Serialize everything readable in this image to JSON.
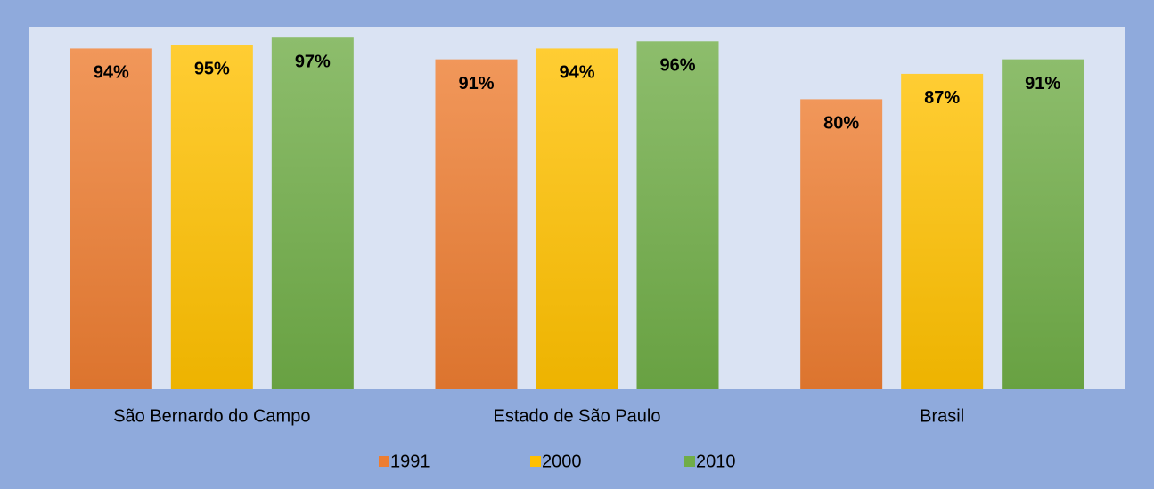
{
  "chart_data": {
    "type": "bar",
    "categories": [
      "São Bernardo do Campo",
      "Estado de São Paulo",
      "Brasil"
    ],
    "series": [
      {
        "name": "1991",
        "color": "#ed7d31",
        "values": [
          94,
          91,
          80
        ],
        "value_labels": [
          "94%",
          "91%",
          "80%"
        ]
      },
      {
        "name": "2000",
        "color": "#ffc000",
        "values": [
          95,
          94,
          87
        ],
        "value_labels": [
          "95%",
          "94%",
          "87%"
        ]
      },
      {
        "name": "2010",
        "color": "#70ad47",
        "values": [
          97,
          96,
          91
        ],
        "value_labels": [
          "97%",
          "96%",
          "91%"
        ]
      }
    ],
    "ylim": [
      0,
      100
    ],
    "legend": "bottom"
  }
}
